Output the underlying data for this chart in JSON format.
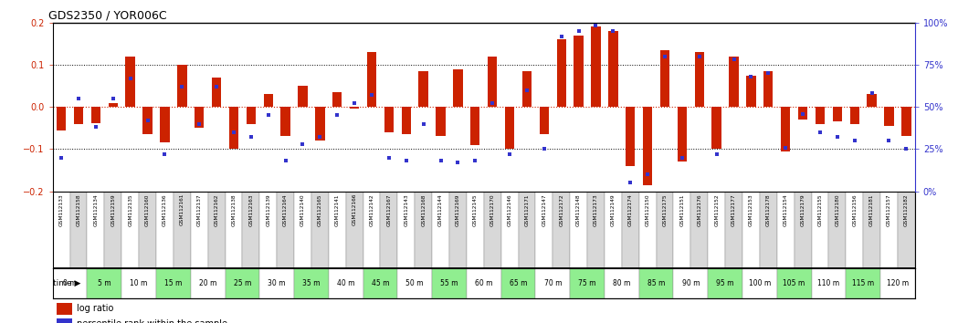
{
  "title": "GDS2350 / YOR006C",
  "gsm_labels": [
    "GSM112133",
    "GSM112158",
    "GSM112134",
    "GSM112159",
    "GSM112135",
    "GSM112160",
    "GSM112136",
    "GSM112161",
    "GSM112137",
    "GSM112162",
    "GSM112138",
    "GSM112163",
    "GSM112139",
    "GSM112164",
    "GSM112140",
    "GSM112165",
    "GSM112141",
    "GSM112166",
    "GSM112142",
    "GSM112167",
    "GSM112143",
    "GSM112168",
    "GSM112144",
    "GSM112169",
    "GSM112145",
    "GSM112170",
    "GSM112146",
    "GSM112171",
    "GSM112147",
    "GSM112172",
    "GSM112148",
    "GSM112173",
    "GSM112149",
    "GSM112174",
    "GSM112150",
    "GSM112175",
    "GSM112151",
    "GSM112176",
    "GSM112152",
    "GSM112177",
    "GSM112153",
    "GSM112178",
    "GSM112154",
    "GSM112179",
    "GSM112155",
    "GSM112180",
    "GSM112156",
    "GSM112181",
    "GSM112157",
    "GSM112182"
  ],
  "time_labels": [
    "0 m",
    "5 m",
    "10 m",
    "15 m",
    "20 m",
    "25 m",
    "30 m",
    "35 m",
    "40 m",
    "45 m",
    "50 m",
    "55 m",
    "60 m",
    "65 m",
    "70 m",
    "75 m",
    "80 m",
    "85 m",
    "90 m",
    "95 m",
    "100 m",
    "105 m",
    "110 m",
    "115 m",
    "120 m"
  ],
  "log_ratio": [
    -0.055,
    -0.04,
    -0.038,
    0.01,
    0.12,
    -0.065,
    -0.085,
    0.1,
    -0.05,
    0.07,
    -0.1,
    -0.04,
    0.03,
    -0.07,
    0.05,
    -0.08,
    0.035,
    -0.005,
    0.13,
    -0.06,
    -0.065,
    0.085,
    -0.07,
    0.09,
    -0.09,
    0.12,
    -0.1,
    0.085,
    -0.065,
    0.16,
    0.17,
    0.19,
    0.18,
    -0.14,
    -0.185,
    0.135,
    -0.13,
    0.13,
    -0.1,
    0.12,
    0.075,
    0.085,
    -0.105,
    -0.03,
    -0.04,
    -0.035,
    -0.04,
    0.03,
    -0.045,
    -0.07
  ],
  "percentile_rank": [
    20,
    55,
    38,
    55,
    67,
    42,
    22,
    62,
    40,
    62,
    35,
    32,
    45,
    18,
    28,
    32,
    45,
    52,
    57,
    20,
    18,
    40,
    18,
    17,
    18,
    52,
    22,
    60,
    25,
    92,
    95,
    98,
    95,
    5,
    10,
    80,
    20,
    80,
    22,
    78,
    68,
    70,
    26,
    46,
    35,
    32,
    30,
    58,
    30,
    25
  ],
  "bar_color": "#cc2200",
  "dot_color": "#3333cc",
  "bg_color": "#ffffff",
  "ylim": [
    -0.2,
    0.2
  ],
  "y2lim": [
    0,
    100
  ],
  "bar_width": 0.55,
  "time_green": "#90ee90",
  "time_white": "#ffffff",
  "gsm_white": "#ffffff",
  "gsm_gray": "#d8d8d8",
  "gsm_border": "#888888"
}
